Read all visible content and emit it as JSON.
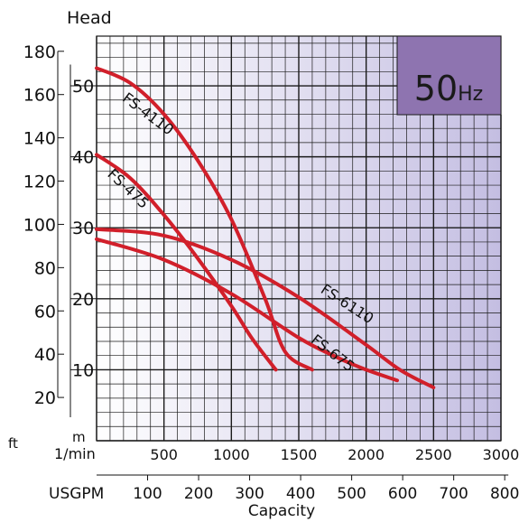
{
  "chart_data": {
    "type": "line",
    "title": "",
    "ylabel": "Head",
    "xlabel": "Capacity",
    "badge": {
      "value": "50",
      "unit": "Hz",
      "color": "#8e74b0",
      "text_color": "#1a1a1a"
    },
    "x_axis_primary": {
      "unit": "1/min",
      "range": [
        0,
        3000
      ],
      "ticks": [
        500,
        1000,
        1500,
        2000,
        2500,
        3000
      ]
    },
    "x_axis_secondary": {
      "unit": "USGPM",
      "ticks": [
        100,
        200,
        300,
        400,
        500,
        600,
        700,
        800
      ]
    },
    "y_axis_m": {
      "unit": "m",
      "range": [
        0,
        57
      ],
      "ticks": [
        10,
        20,
        30,
        40,
        50
      ]
    },
    "y_axis_ft": {
      "unit": "ft",
      "ticks": [
        20,
        40,
        60,
        80,
        100,
        120,
        140,
        160,
        180
      ]
    },
    "grid": true,
    "background_gradient": [
      "#ffffff",
      "#c4bee2"
    ],
    "grid_color": "#1a1a1a",
    "curve_color": "#d11f2a",
    "series": [
      {
        "name": "FS-4110",
        "x": [
          0,
          250,
          500,
          750,
          1000,
          1250,
          1400,
          1600
        ],
        "y": [
          52.5,
          50.4,
          46,
          39.5,
          31.2,
          20,
          12.5,
          10
        ]
      },
      {
        "name": "FS-475",
        "x": [
          0,
          250,
          500,
          750,
          1000,
          1150,
          1330
        ],
        "y": [
          40.3,
          37,
          31.8,
          25.7,
          19,
          14.5,
          10
        ]
      },
      {
        "name": "FS-6110",
        "x": [
          0,
          500,
          1000,
          1500,
          2000,
          2250,
          2500
        ],
        "y": [
          29.8,
          28.9,
          25.5,
          20.2,
          13.5,
          10,
          7.5
        ]
      },
      {
        "name": "FS-675",
        "x": [
          0,
          500,
          1000,
          1500,
          1800,
          2000,
          2230
        ],
        "y": [
          28.4,
          25.5,
          20.7,
          14.5,
          11.6,
          10,
          8.5
        ]
      }
    ]
  }
}
